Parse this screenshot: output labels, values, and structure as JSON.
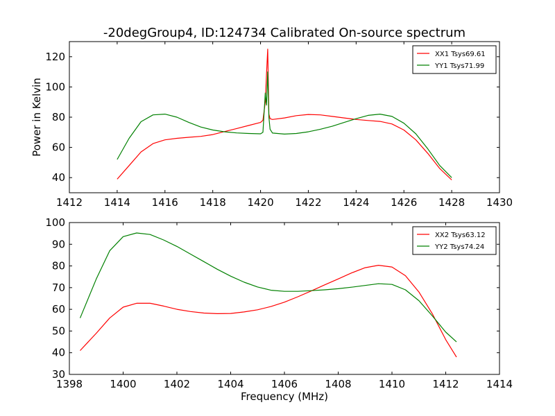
{
  "figure": {
    "title": "-20degGroup4, ID:124734 Calibrated On-source spectrum"
  },
  "chart_data": [
    {
      "type": "line",
      "title": "-20degGroup4, ID:124734 Calibrated On-source spectrum",
      "xlabel": "",
      "ylabel": "Power in Kelvin",
      "xlim": [
        1412,
        1430
      ],
      "ylim": [
        30,
        130
      ],
      "xticks": [
        1412,
        1414,
        1416,
        1418,
        1420,
        1422,
        1424,
        1426,
        1428,
        1430
      ],
      "yticks": [
        40,
        60,
        80,
        100,
        120
      ],
      "grid": false,
      "legend_position": "top-right",
      "series": [
        {
          "name": "XX1 Tsys69.61",
          "color": "#ff0000",
          "x": [
            1414.0,
            1414.5,
            1415.0,
            1415.5,
            1416.0,
            1416.5,
            1417.0,
            1417.5,
            1418.0,
            1418.5,
            1419.0,
            1419.5,
            1420.0,
            1420.1,
            1420.2,
            1420.25,
            1420.3,
            1420.35,
            1420.4,
            1420.5,
            1421.0,
            1421.5,
            1422.0,
            1422.5,
            1423.0,
            1423.5,
            1424.0,
            1424.5,
            1425.0,
            1425.5,
            1426.0,
            1426.5,
            1427.0,
            1427.5,
            1428.0
          ],
          "y": [
            39,
            48,
            57,
            62.5,
            65,
            66,
            66.7,
            67.3,
            68.5,
            70.5,
            72.5,
            74.5,
            76.5,
            78,
            90,
            109,
            125,
            82,
            79,
            78.5,
            79.5,
            81,
            81.8,
            81.5,
            80.5,
            79.5,
            78.5,
            77.8,
            77.2,
            75.5,
            71.5,
            65,
            56,
            46,
            38.5
          ]
        },
        {
          "name": "YY1 Tsys71.99",
          "color": "#008000",
          "x": [
            1414.0,
            1414.5,
            1415.0,
            1415.5,
            1416.0,
            1416.5,
            1417.0,
            1417.5,
            1418.0,
            1418.5,
            1419.0,
            1419.5,
            1420.0,
            1420.1,
            1420.2,
            1420.25,
            1420.3,
            1420.35,
            1420.4,
            1420.5,
            1421.0,
            1421.5,
            1422.0,
            1422.5,
            1423.0,
            1423.5,
            1424.0,
            1424.5,
            1425.0,
            1425.5,
            1426.0,
            1426.5,
            1427.0,
            1427.5,
            1428.0
          ],
          "y": [
            52,
            66,
            77,
            81.5,
            82,
            80,
            76.5,
            73.5,
            71.5,
            70.3,
            69.6,
            69.2,
            69,
            70,
            96,
            88,
            110,
            80,
            72,
            69.5,
            68.8,
            69.2,
            70.3,
            72,
            74,
            76.5,
            79,
            81.2,
            82,
            80.5,
            76,
            69,
            59,
            48,
            40
          ]
        }
      ]
    },
    {
      "type": "line",
      "title": "",
      "xlabel": "Frequency (MHz)",
      "ylabel": "",
      "xlim": [
        1398,
        1414
      ],
      "ylim": [
        30,
        100
      ],
      "xticks": [
        1398,
        1400,
        1402,
        1404,
        1406,
        1408,
        1410,
        1412,
        1414
      ],
      "yticks": [
        30,
        40,
        50,
        60,
        70,
        80,
        90,
        100
      ],
      "grid": false,
      "legend_position": "top-right",
      "series": [
        {
          "name": "XX2 Tsys63.12",
          "color": "#ff0000",
          "x": [
            1398.4,
            1399.0,
            1399.5,
            1400.0,
            1400.5,
            1401.0,
            1401.5,
            1402.0,
            1402.5,
            1403.0,
            1403.5,
            1404.0,
            1404.5,
            1405.0,
            1405.5,
            1406.0,
            1406.5,
            1407.0,
            1407.5,
            1408.0,
            1408.5,
            1409.0,
            1409.5,
            1410.0,
            1410.5,
            1411.0,
            1411.5,
            1412.0,
            1412.4
          ],
          "y": [
            41,
            49,
            56,
            61,
            62.8,
            62.8,
            61.5,
            60,
            59,
            58.3,
            58,
            58.1,
            58.8,
            59.8,
            61.3,
            63.3,
            65.8,
            68.5,
            71.3,
            74,
            76.8,
            79.2,
            80.3,
            79.5,
            75.5,
            68,
            58,
            46,
            38
          ]
        },
        {
          "name": "YY2 Tsys74.24",
          "color": "#008000",
          "x": [
            1398.4,
            1399.0,
            1399.5,
            1400.0,
            1400.5,
            1401.0,
            1401.5,
            1402.0,
            1402.5,
            1403.0,
            1403.5,
            1404.0,
            1404.5,
            1405.0,
            1405.5,
            1406.0,
            1406.5,
            1407.0,
            1407.5,
            1408.0,
            1408.5,
            1409.0,
            1409.5,
            1410.0,
            1410.5,
            1411.0,
            1411.5,
            1412.0,
            1412.4
          ],
          "y": [
            56,
            74,
            87,
            93.5,
            95.2,
            94.5,
            92,
            89,
            85.5,
            82,
            78.5,
            75.3,
            72.5,
            70.3,
            68.8,
            68.3,
            68.3,
            68.6,
            69,
            69.5,
            70.2,
            71,
            71.8,
            71.5,
            69,
            64,
            57,
            49.5,
            45
          ]
        }
      ]
    }
  ]
}
